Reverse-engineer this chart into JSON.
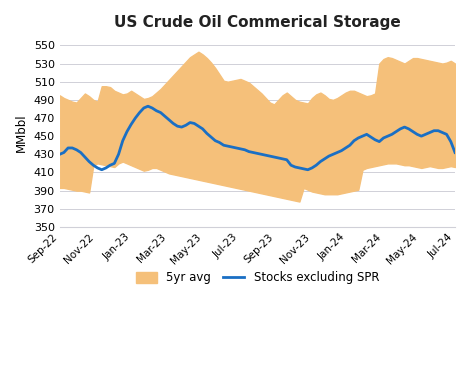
{
  "title": "US Crude Oil Commerical Storage",
  "ylabel": "MMbbl",
  "ylim": [
    350,
    558
  ],
  "yticks": [
    350,
    370,
    390,
    410,
    430,
    450,
    470,
    490,
    510,
    530,
    550
  ],
  "background_color": "#ffffff",
  "fill_color": "#f5c07a",
  "line_color": "#1a6fc4",
  "x_labels": [
    "Sep-22",
    "Nov-22",
    "Jan-23",
    "Mar-23",
    "May-23",
    "Jul-23",
    "Sep-23",
    "Nov-23",
    "Jan-24",
    "Mar-24",
    "May-24",
    "Jul-24"
  ],
  "upper": [
    495,
    492,
    490,
    488,
    487,
    492,
    497,
    494,
    490,
    488,
    505,
    505,
    504,
    500,
    498,
    496,
    497,
    500,
    497,
    494,
    491,
    492,
    494,
    498,
    502,
    507,
    512,
    517,
    522,
    527,
    532,
    537,
    540,
    543,
    540,
    536,
    531,
    525,
    518,
    511,
    510,
    511,
    512,
    513,
    511,
    509,
    505,
    501,
    497,
    492,
    487,
    485,
    490,
    495,
    498,
    494,
    490,
    488,
    487,
    486,
    492,
    496,
    498,
    495,
    491,
    490,
    492,
    495,
    498,
    500,
    500,
    498,
    496,
    494,
    495,
    497,
    530,
    535,
    537,
    536,
    534,
    532,
    530,
    533,
    536,
    536,
    535,
    534,
    533,
    532,
    531,
    530,
    531,
    533,
    530
  ],
  "lower": [
    393,
    393,
    392,
    391,
    390,
    390,
    389,
    388,
    418,
    420,
    419,
    418,
    417,
    416,
    420,
    422,
    420,
    418,
    416,
    414,
    412,
    413,
    415,
    415,
    413,
    411,
    409,
    408,
    407,
    406,
    405,
    404,
    403,
    402,
    401,
    400,
    399,
    398,
    397,
    396,
    395,
    394,
    393,
    392,
    391,
    390,
    389,
    388,
    387,
    386,
    385,
    384,
    383,
    382,
    381,
    380,
    379,
    378,
    393,
    391,
    389,
    388,
    387,
    386,
    386,
    386,
    386,
    387,
    388,
    389,
    390,
    391,
    413,
    415,
    416,
    417,
    418,
    419,
    420,
    420,
    420,
    419,
    418,
    418,
    417,
    416,
    415,
    416,
    417,
    416,
    415,
    415,
    416,
    417,
    416
  ],
  "stocks": [
    430,
    432,
    437,
    437,
    435,
    432,
    427,
    422,
    418,
    415,
    413,
    415,
    418,
    420,
    430,
    445,
    455,
    463,
    470,
    476,
    481,
    483,
    481,
    478,
    476,
    472,
    468,
    464,
    461,
    460,
    462,
    465,
    464,
    461,
    458,
    453,
    449,
    445,
    443,
    440,
    439,
    438,
    437,
    436,
    435,
    433,
    432,
    431,
    430,
    429,
    428,
    427,
    426,
    425,
    424,
    418,
    416,
    415,
    414,
    413,
    415,
    418,
    422,
    425,
    428,
    430,
    432,
    434,
    437,
    440,
    445,
    448,
    450,
    452,
    449,
    446,
    444,
    448,
    450,
    452,
    455,
    458,
    460,
    458,
    455,
    452,
    450,
    452,
    454,
    456,
    456,
    454,
    452,
    444,
    432
  ]
}
